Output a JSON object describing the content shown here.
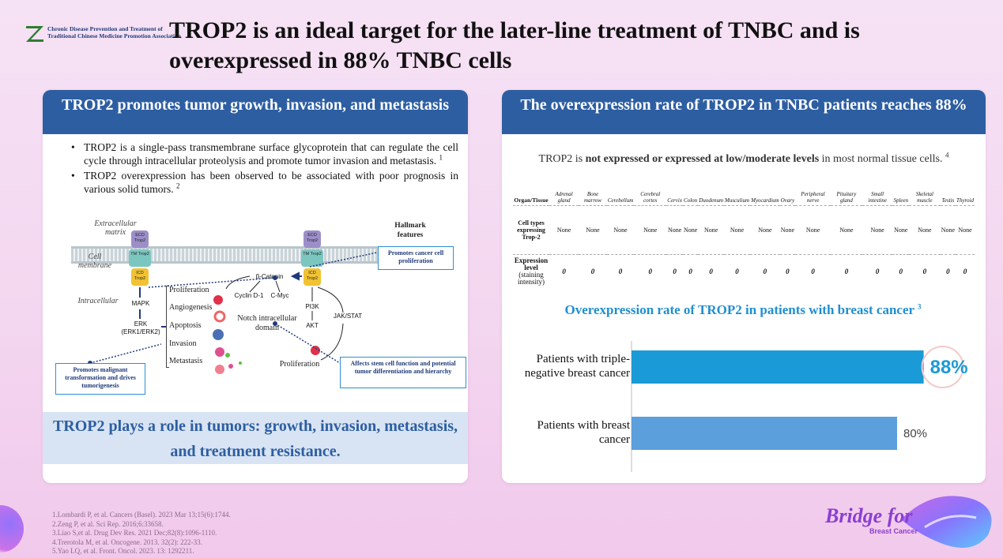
{
  "header": {
    "logo_line1": "Chronic Disease Prevention and Treatment of",
    "logo_line2": "Traditional Chinese Medicine Promotion Association",
    "title": "TROP2 is an ideal target for the later-line treatment of TNBC and is overexpressed in 88% TNBC cells"
  },
  "left_panel": {
    "header": "TROP2 promotes tumor growth, invasion, and metastasis",
    "bullet1": "TROP2 is a single-pass transmembrane surface glycoprotein that can regulate the cell cycle through intracellular proteolysis and promote tumor invasion and metastasis.",
    "bullet1_ref": "1",
    "bullet2": "TROP2 overexpression has been observed to be associated with poor prognosis in various solid tumors.",
    "bullet2_ref": "2",
    "diagram": {
      "extracellular": "Extracellular matrix",
      "cell_membrane": "Cell membrane",
      "intracellular": "Intracellular",
      "hallmark": "Hallmark features",
      "ecd": "ECD Trop2",
      "tm": "TM Trop2",
      "icd": "ICD Trop2",
      "mapk": "MAPK",
      "erk": "ERK (ERK1/ERK2)",
      "beta_catenin": "β-Catenin",
      "cyclin": "Cyclin D-1",
      "cmyc": "C-Myc",
      "pi3k": "PI3K",
      "akt": "AKT",
      "jak": "JAK/STAT",
      "notch": "Notch intracellular domain",
      "proliferation_bottom": "Proliferation",
      "features": [
        "Proliferation",
        "Angiogenesis",
        "Apoptosis",
        "Invasion",
        "Metastasis"
      ],
      "box_proliferation": "Promotes cancer cell proliferation",
      "box_malignant": "Promotes malignant transformation and drives tumorigenesis",
      "box_stem": "Affects stem cell function and potential tumor differentiation and hierarchy"
    },
    "footer": "TROP2 plays a role in tumors: growth, invasion, metastasis, and treatment resistance."
  },
  "right_panel": {
    "header": "The overexpression rate of TROP2 in TNBC patients reaches 88%",
    "subtitle_pre": "TROP2 is ",
    "subtitle_bold": "not expressed or expressed at low/moderate levels",
    "subtitle_post": " in most normal tissue cells.",
    "subtitle_ref": "4",
    "table": {
      "col0": "Organ/Tissue",
      "columns": [
        "Adrenal gland",
        "Bone marrow",
        "Cerebellum",
        "Cerebral cortex",
        "Cervix",
        "Colon",
        "Duodenum",
        "Musculium",
        "Myocardium",
        "Ovary",
        "Peripheral nerve",
        "Pituitary gland",
        "Small intestine",
        "Spleen",
        "Skeletal muscle",
        "Testis",
        "Thyroid"
      ],
      "row1_head": "Cell types expressing Trop-2",
      "row1_values": [
        "None",
        "None",
        "None",
        "None",
        "None",
        "None",
        "None",
        "None",
        "None",
        "None",
        "None",
        "None",
        "None",
        "None",
        "None",
        "None",
        "None"
      ],
      "row2_head_bold": "Expression level",
      "row2_head_rest": " (staining intensity)",
      "row2_values": [
        "0",
        "0",
        "0",
        "0",
        "0",
        "0",
        "0",
        "0",
        "0",
        "0",
        "0",
        "0",
        "0",
        "0",
        "0",
        "0",
        "0"
      ]
    },
    "chart_title": "Overexpression rate of TROP2 in patients with breast cancer",
    "chart_title_ref": "3"
  },
  "chart_data": {
    "type": "bar",
    "orientation": "horizontal",
    "categories": [
      "Patients with triple-negative breast cancer",
      "Patients with breast cancer"
    ],
    "values": [
      88,
      80
    ],
    "labels": [
      "88%",
      "80%"
    ],
    "colors": [
      "#1a9ad6",
      "#5b9fdc"
    ],
    "xlim": [
      0,
      100
    ],
    "title": "Overexpression rate of TROP2 in patients with breast cancer"
  },
  "footnotes": [
    "1.Lombardi P, et al. Cancers (Basel). 2023 Mar 13;15(6):1744.",
    "2.Zeng P, et al. Sci Rep. 2016;6:33658.",
    "3.Liao S,et al. Drug Dev Res. 2021 Dec;82(8):1096-1110.",
    "4.Trerotola M, et al. Oncogene. 2013. 32(2): 222-33.",
    "5.Yao LQ, et al. Front. Oncol. 2023. 13: 1292211."
  ],
  "brand": {
    "name": "Bridge for",
    "sub": "Breast Cancer"
  }
}
